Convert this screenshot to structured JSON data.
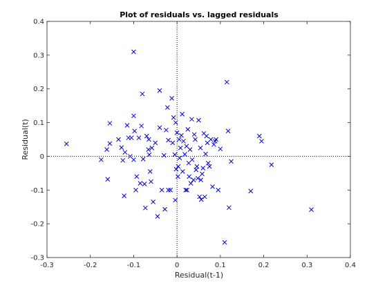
{
  "chart_data": {
    "type": "scatter",
    "title": "Plot of residuals vs. lagged residuals",
    "xlabel": "Residual(t-1)",
    "ylabel": "Residual(t)",
    "xlim": [
      -0.3,
      0.4
    ],
    "ylim": [
      -0.3,
      0.4
    ],
    "xticks": [
      -0.3,
      -0.2,
      -0.1,
      0,
      0.1,
      0.2,
      0.3,
      0.4
    ],
    "yticks": [
      -0.3,
      -0.2,
      -0.1,
      0,
      0.1,
      0.2,
      0.3,
      0.4
    ],
    "xtick_labels": [
      "-0.3",
      "-0.2",
      "-0.1",
      "0",
      "0.1",
      "0.2",
      "0.3",
      "0.4"
    ],
    "ytick_labels": [
      "-0.3",
      "-0.2",
      "-0.1",
      "0",
      "0.1",
      "0.2",
      "0.3",
      "0.4"
    ],
    "grid": false,
    "reference_lines": {
      "x": 0,
      "y": 0,
      "style": "dotted"
    },
    "marker": "x",
    "color": "#0000cc",
    "points": [
      [
        -0.255,
        0.037
      ],
      [
        -0.175,
        -0.01
      ],
      [
        -0.16,
        -0.068
      ],
      [
        -0.162,
        0.02
      ],
      [
        -0.155,
        0.038
      ],
      [
        -0.155,
        0.098
      ],
      [
        -0.135,
        0.05
      ],
      [
        -0.128,
        0.026
      ],
      [
        -0.125,
        -0.012
      ],
      [
        -0.12,
        0.012
      ],
      [
        -0.122,
        -0.117
      ],
      [
        -0.115,
        0.092
      ],
      [
        -0.112,
        0.055
      ],
      [
        -0.108,
        0.0
      ],
      [
        -0.105,
        0.055
      ],
      [
        -0.1,
        0.12
      ],
      [
        -0.098,
        0.075
      ],
      [
        -0.1,
        -0.01
      ],
      [
        -0.095,
        -0.1
      ],
      [
        -0.093,
        -0.06
      ],
      [
        -0.1,
        0.31
      ],
      [
        -0.088,
        0.055
      ],
      [
        -0.085,
        -0.08
      ],
      [
        -0.082,
        0.09
      ],
      [
        -0.08,
        0.185
      ],
      [
        -0.078,
        -0.008
      ],
      [
        -0.075,
        -0.082
      ],
      [
        -0.073,
        -0.153
      ],
      [
        -0.07,
        0.06
      ],
      [
        -0.066,
        0.02
      ],
      [
        -0.065,
        0.05
      ],
      [
        -0.064,
        0.005
      ],
      [
        -0.062,
        -0.045
      ],
      [
        -0.06,
        -0.075
      ],
      [
        -0.058,
        0.025
      ],
      [
        -0.055,
        -0.135
      ],
      [
        -0.05,
        0.04
      ],
      [
        -0.045,
        -0.178
      ],
      [
        -0.04,
        0.195
      ],
      [
        -0.04,
        0.085
      ],
      [
        -0.035,
        -0.1
      ],
      [
        -0.03,
        0.003
      ],
      [
        -0.028,
        -0.157
      ],
      [
        -0.025,
        0.078
      ],
      [
        -0.022,
        0.145
      ],
      [
        -0.02,
        0.048
      ],
      [
        -0.02,
        -0.1
      ],
      [
        -0.015,
        -0.1
      ],
      [
        -0.012,
        0.172
      ],
      [
        -0.01,
        0.04
      ],
      [
        -0.008,
        0.115
      ],
      [
        -0.005,
        0.005
      ],
      [
        -0.004,
        -0.13
      ],
      [
        -0.003,
        0.1
      ],
      [
        -0.002,
        -0.038
      ],
      [
        0.0,
        0.07
      ],
      [
        0.002,
        -0.06
      ],
      [
        0.003,
        -0.03
      ],
      [
        0.005,
        0.05
      ],
      [
        0.006,
        -0.005
      ],
      [
        0.008,
        0.025
      ],
      [
        0.01,
        0.062
      ],
      [
        0.012,
        0.125
      ],
      [
        0.013,
        -0.045
      ],
      [
        0.015,
        0.045
      ],
      [
        0.018,
        0.006
      ],
      [
        0.02,
        -0.1
      ],
      [
        0.022,
        0.03
      ],
      [
        0.023,
        -0.1
      ],
      [
        0.025,
        0.08
      ],
      [
        0.027,
        -0.02
      ],
      [
        0.028,
        -0.06
      ],
      [
        0.03,
        0.02
      ],
      [
        0.032,
        -0.08
      ],
      [
        0.034,
        0.11
      ],
      [
        0.035,
        -0.01
      ],
      [
        0.038,
        -0.07
      ],
      [
        0.04,
        0.065
      ],
      [
        0.042,
        0.05
      ],
      [
        0.044,
        -0.04
      ],
      [
        0.046,
        -0.03
      ],
      [
        0.048,
        -0.065
      ],
      [
        0.05,
        0.107
      ],
      [
        0.052,
        -0.12
      ],
      [
        0.054,
        0.025
      ],
      [
        0.055,
        -0.07
      ],
      [
        0.056,
        -0.128
      ],
      [
        0.058,
        -0.052
      ],
      [
        0.06,
        -0.035
      ],
      [
        0.062,
        0.068
      ],
      [
        0.064,
        -0.12
      ],
      [
        0.066,
        0.007
      ],
      [
        0.068,
        0.06
      ],
      [
        0.07,
        0.04
      ],
      [
        0.072,
        -0.02
      ],
      [
        0.075,
        -0.03
      ],
      [
        0.078,
        0.05
      ],
      [
        0.082,
        -0.09
      ],
      [
        0.085,
        0.035
      ],
      [
        0.088,
        0.045
      ],
      [
        0.09,
        0.05
      ],
      [
        0.095,
        -0.1
      ],
      [
        0.1,
        0.022
      ],
      [
        0.11,
        -0.255
      ],
      [
        0.115,
        0.22
      ],
      [
        0.118,
        0.075
      ],
      [
        0.12,
        -0.152
      ],
      [
        0.125,
        -0.015
      ],
      [
        0.17,
        -0.103
      ],
      [
        0.19,
        0.06
      ],
      [
        0.195,
        0.045
      ],
      [
        0.218,
        -0.025
      ],
      [
        0.31,
        -0.158
      ]
    ]
  }
}
